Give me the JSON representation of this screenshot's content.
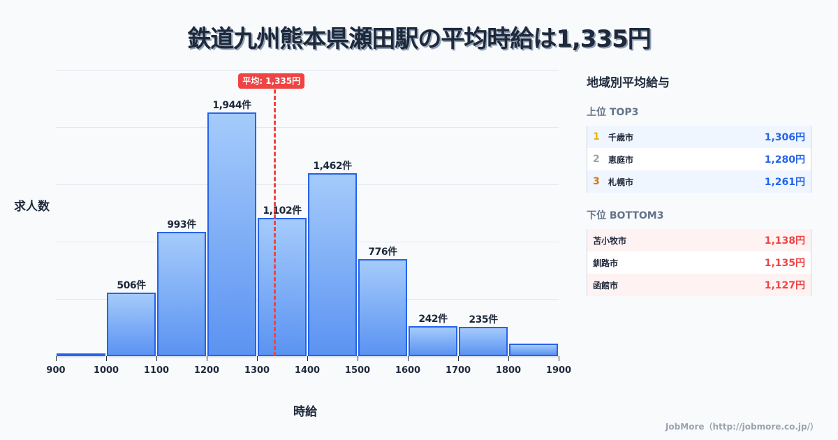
{
  "title": "鉄道九州熊本県瀬田駅の平均時給は1,335円",
  "chart_data": {
    "type": "bar",
    "title": "鉄道九州熊本県瀬田駅の平均時給は1,335円",
    "xlabel": "時給",
    "ylabel": "求人数",
    "bins": [
      900,
      1000,
      1100,
      1200,
      1300,
      1400,
      1500,
      1600,
      1700,
      1800,
      1900
    ],
    "categories": [
      "900-1000",
      "1000-1100",
      "1100-1200",
      "1200-1300",
      "1300-1400",
      "1400-1500",
      "1500-1600",
      "1600-1700",
      "1700-1800",
      "1800-1900"
    ],
    "values": [
      22,
      506,
      993,
      1944,
      1102,
      1462,
      776,
      242,
      235,
      100
    ],
    "value_labels": [
      "",
      "506件",
      "993件",
      "1,944件",
      "1,102件",
      "1,462件",
      "776件",
      "242件",
      "235件",
      ""
    ],
    "x_ticks": [
      "900",
      "1000",
      "1100",
      "1200",
      "1300",
      "1400",
      "1500",
      "1600",
      "1700",
      "1800",
      "1900"
    ],
    "xlim": [
      900,
      1900
    ],
    "grid": true,
    "mean": 1335,
    "mean_label": "平均: 1,335円",
    "colors": {
      "bar_fill_top": "#a5cbfb",
      "bar_fill_bottom": "#5b93f2",
      "bar_border": "#2563eb",
      "mean_line": "#ef4444"
    }
  },
  "sidebar": {
    "title": "地域別平均給与",
    "top": {
      "heading": "上位 TOP3",
      "rows": [
        {
          "rank": "1",
          "city": "千歳市",
          "value": "1,306円",
          "rank_color": "#eab308"
        },
        {
          "rank": "2",
          "city": "恵庭市",
          "value": "1,280円",
          "rank_color": "#9ca3af"
        },
        {
          "rank": "3",
          "city": "札幌市",
          "value": "1,261円",
          "rank_color": "#d97706"
        }
      ]
    },
    "bottom": {
      "heading": "下位 BOTTOM3",
      "rows": [
        {
          "city": "苫小牧市",
          "value": "1,138円"
        },
        {
          "city": "釧路市",
          "value": "1,135円"
        },
        {
          "city": "函館市",
          "value": "1,127円"
        }
      ]
    }
  },
  "footer": "JobMore（http://jobmore.co.jp/）"
}
